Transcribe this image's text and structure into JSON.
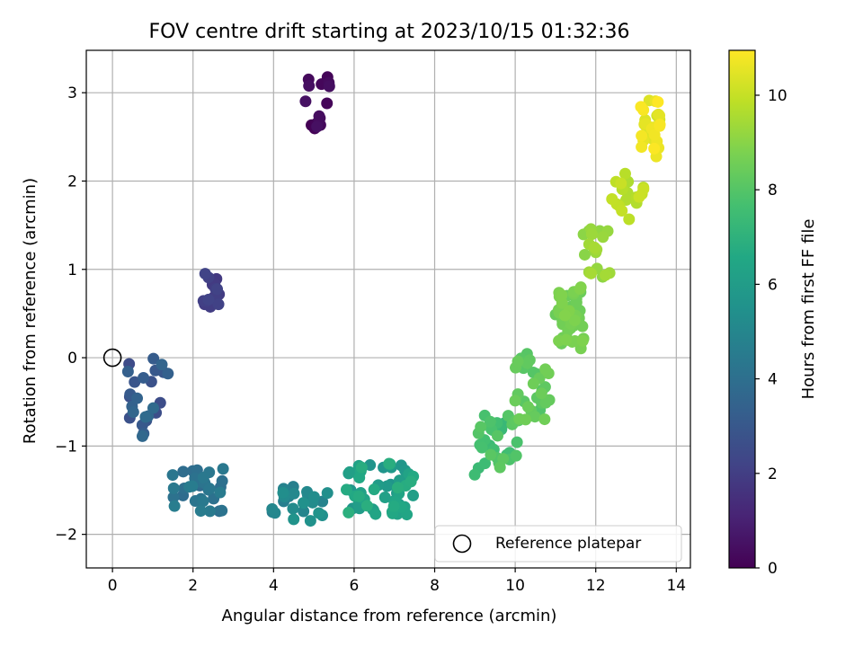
{
  "chart_data": {
    "type": "scatter",
    "title": "FOV centre drift starting at 2023/10/15 01:32:36",
    "xlabel": "Angular distance from reference (arcmin)",
    "ylabel": "Rotation from reference (arcmin)",
    "xlim": [
      -0.65,
      14.35
    ],
    "ylim": [
      -2.38,
      3.48
    ],
    "xticks": [
      0,
      2,
      4,
      6,
      8,
      10,
      12,
      14
    ],
    "yticks": [
      -2,
      -1,
      0,
      1,
      2,
      3
    ],
    "grid": true,
    "colorbar": {
      "label": "Hours from first FF file",
      "colormap": "viridis",
      "range": [
        0,
        10.95
      ],
      "ticks": [
        0,
        2,
        4,
        6,
        8,
        10
      ]
    },
    "legend": {
      "entries": [
        "Reference platepar"
      ],
      "location": "lower right"
    },
    "reference_point": {
      "x": 0,
      "y": 0
    },
    "point_clusters": [
      {
        "cx": 5.1,
        "cy": 2.88,
        "sx": 0.32,
        "sy": 0.3,
        "n": 16,
        "t0": 0.0,
        "t1": 0.5
      },
      {
        "cx": 2.45,
        "cy": 0.74,
        "sx": 0.2,
        "sy": 0.22,
        "n": 16,
        "t0": 1.8,
        "t1": 2.2
      },
      {
        "cx": 0.85,
        "cy": -0.45,
        "sx": 0.55,
        "sy": 0.45,
        "n": 25,
        "t0": 2.5,
        "t1": 3.8
      },
      {
        "cx": 2.1,
        "cy": -1.5,
        "sx": 0.65,
        "sy": 0.25,
        "n": 32,
        "t0": 3.8,
        "t1": 4.6
      },
      {
        "cx": 4.6,
        "cy": -1.65,
        "sx": 0.8,
        "sy": 0.2,
        "n": 24,
        "t0": 4.6,
        "t1": 5.6
      },
      {
        "cx": 6.6,
        "cy": -1.5,
        "sx": 0.9,
        "sy": 0.3,
        "n": 55,
        "t0": 5.6,
        "t1": 6.9
      },
      {
        "cx": 9.5,
        "cy": -1.0,
        "sx": 0.55,
        "sy": 0.35,
        "n": 30,
        "t0": 7.3,
        "t1": 8.2
      },
      {
        "cx": 10.4,
        "cy": -0.35,
        "sx": 0.45,
        "sy": 0.4,
        "n": 35,
        "t0": 7.9,
        "t1": 8.6
      },
      {
        "cx": 11.3,
        "cy": 0.45,
        "sx": 0.4,
        "sy": 0.35,
        "n": 45,
        "t0": 8.4,
        "t1": 8.9
      },
      {
        "cx": 12.0,
        "cy": 1.2,
        "sx": 0.35,
        "sy": 0.35,
        "n": 20,
        "t0": 9.0,
        "t1": 9.5
      },
      {
        "cx": 12.8,
        "cy": 1.85,
        "sx": 0.45,
        "sy": 0.3,
        "n": 18,
        "t0": 9.6,
        "t1": 10.1
      },
      {
        "cx": 13.35,
        "cy": 2.6,
        "sx": 0.25,
        "sy": 0.35,
        "n": 30,
        "t0": 10.2,
        "t1": 10.95
      }
    ]
  }
}
